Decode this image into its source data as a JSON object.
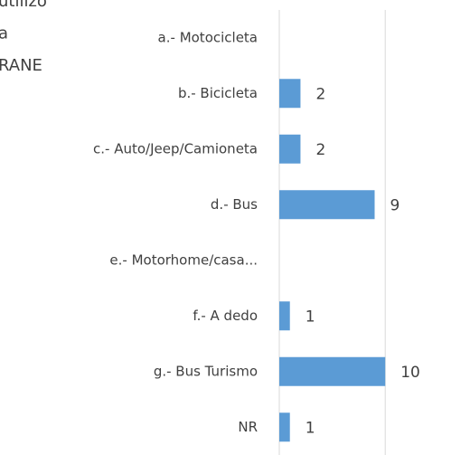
{
  "chart_data": {
    "type": "hbar",
    "title_lines": [
      "utilizo",
      "a",
      "RANE"
    ],
    "categories": [
      "a.- Motocicleta",
      "b.- Bicicleta",
      "c.- Auto/Jeep/Camioneta",
      "d.- Bus",
      "e.- Motorhome/casa...",
      "f.- A dedo",
      "g.- Bus Turismo",
      "NR"
    ],
    "values": [
      null,
      2,
      2,
      9,
      null,
      1,
      10,
      1
    ],
    "color": "#5b9bd5",
    "xlim": [
      0,
      18
    ],
    "xticks": [
      0,
      10
    ],
    "grid": true
  }
}
